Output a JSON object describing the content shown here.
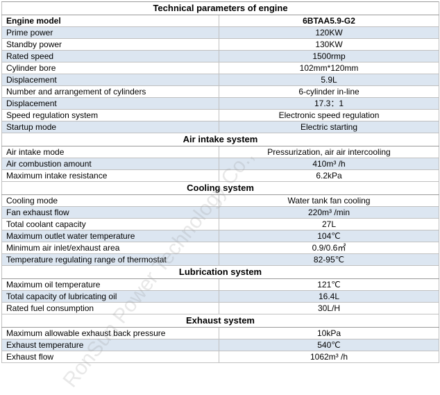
{
  "title": "Technical parameters of engine",
  "colors": {
    "row_shade": "#dce6f1",
    "border": "#c0c0c0"
  },
  "watermark_text": "RonSun Power Technology Co.,",
  "sections": [
    {
      "heading": "",
      "rows": [
        {
          "label": "Engine model",
          "value": "6BTAA5.9-G2",
          "bold": true
        },
        {
          "label": "Prime power",
          "value": "120KW"
        },
        {
          "label": "Standby power",
          "value": "130KW"
        },
        {
          "label": "Rated speed",
          "value": "1500rmp"
        },
        {
          "label": "Cylinder bore",
          "value": "102mm*120mm"
        },
        {
          "label": "Displacement",
          "value": "5.9L"
        },
        {
          "label": "Number and arrangement of cylinders",
          "value": "6-cylinder in-line"
        },
        {
          "label": "Displacement",
          "value": "17.3：1"
        },
        {
          "label": "Speed regulation system",
          "value": "Electronic speed regulation"
        },
        {
          "label": "Startup mode",
          "value": "Electric starting"
        }
      ]
    },
    {
      "heading": "Air intake system",
      "rows": [
        {
          "label": "Air intake mode",
          "value": "Pressurization, air air intercooling"
        },
        {
          "label": "Air combustion amount",
          "value": "410m³ /h"
        },
        {
          "label": "Maximum intake resistance",
          "value": "6.2kPa"
        }
      ]
    },
    {
      "heading": "Cooling system",
      "rows": [
        {
          "label": "Cooling mode",
          "value": "Water tank fan cooling"
        },
        {
          "label": "Fan exhaust flow",
          "value": "220m³  /min"
        },
        {
          "label": "Total coolant capacity",
          "value": "27L"
        },
        {
          "label": "Maximum outlet water temperature",
          "value": "104℃"
        },
        {
          "label": "Minimum air inlet/exhaust area",
          "value": "0.9/0.6㎡"
        },
        {
          "label": "Temperature regulating range of thermostat",
          "value": "82-95℃"
        }
      ]
    },
    {
      "heading": "Lubrication system",
      "rows": [
        {
          "label": "Maximum oil temperature",
          "value": "121℃"
        },
        {
          "label": "Total capacity of lubricating oil",
          "value": "16.4L"
        },
        {
          "label": "Rated fuel consumption",
          "value": "30L/H"
        }
      ]
    },
    {
      "heading": "Exhaust system",
      "rows": [
        {
          "label": "Maximum allowable exhaust back pressure",
          "value": "10kPa"
        },
        {
          "label": "Exhaust temperature",
          "value": "540℃"
        },
        {
          "label": "Exhaust flow",
          "value": "1062m³ /h"
        }
      ]
    }
  ]
}
